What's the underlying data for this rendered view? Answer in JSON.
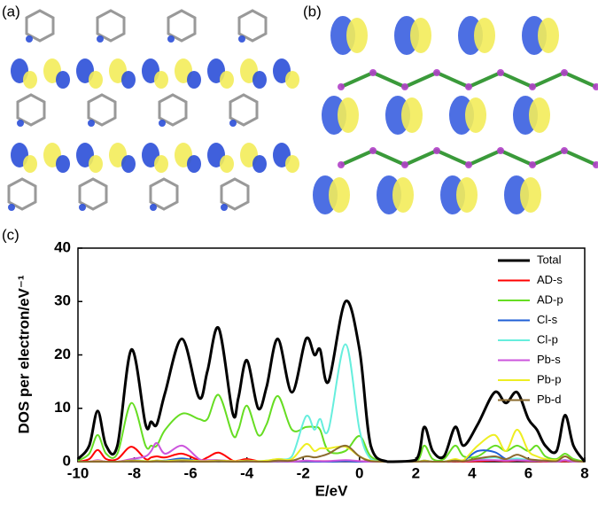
{
  "panels": [
    "(a)",
    "(b)",
    "(c)"
  ],
  "chart_data": {
    "type": "line",
    "xlabel": "E/eV",
    "ylabel": "DOS per electron/eV⁻¹",
    "xlim": [
      -10,
      8
    ],
    "ylim": [
      0,
      40
    ],
    "xticks": [
      -10,
      -8,
      -6,
      -4,
      -2,
      0,
      2,
      4,
      6,
      8
    ],
    "yticks": [
      0,
      10,
      20,
      30,
      40
    ],
    "legend": "upper right",
    "x": [
      -10,
      -9.6,
      -9.3,
      -9.0,
      -8.6,
      -8.1,
      -7.6,
      -7.4,
      -7.2,
      -6.9,
      -6.3,
      -5.7,
      -5.4,
      -5.0,
      -4.5,
      -4.3,
      -4.0,
      -3.6,
      -3.3,
      -2.9,
      -2.4,
      -1.9,
      -1.6,
      -1.4,
      -1.1,
      -0.5,
      0,
      0.4,
      1.0,
      2.0,
      2.3,
      2.6,
      3.0,
      3.4,
      3.7,
      4.2,
      4.8,
      5.2,
      5.6,
      6.0,
      6.3,
      6.6,
      7.0,
      7.3,
      7.6,
      8.0
    ],
    "series": [
      {
        "name": "Total",
        "color": "#000000",
        "values": [
          0.5,
          3,
          9.5,
          3,
          3,
          21,
          7,
          7.5,
          7,
          13,
          23,
          12,
          17,
          25,
          9,
          12,
          19,
          10,
          14,
          23,
          13,
          23,
          20,
          21,
          15,
          30,
          21,
          3,
          0,
          0.3,
          6.5,
          2,
          1,
          6.5,
          3,
          7,
          13,
          11,
          13,
          8,
          6,
          3,
          2,
          8.7,
          3,
          0
        ]
      },
      {
        "name": "AD-s",
        "color": "#ff0000",
        "values": [
          0,
          0.5,
          2.2,
          0.5,
          0.5,
          2.8,
          0.5,
          0.8,
          1,
          0.8,
          1.5,
          0.3,
          0.8,
          1.7,
          0.2,
          0.2,
          0.5,
          0.1,
          0.1,
          0.2,
          0.1,
          0.1,
          0.1,
          0.1,
          0.1,
          0.1,
          0.1,
          0,
          0,
          0,
          0.1,
          0,
          0,
          0.1,
          0,
          0.1,
          0.2,
          0.1,
          0.2,
          0.1,
          0.1,
          0,
          0,
          0.1,
          0,
          0
        ]
      },
      {
        "name": "AD-p",
        "color": "#66dd22",
        "values": [
          0.2,
          1.5,
          5,
          1.5,
          1.5,
          11,
          3,
          3,
          3,
          6,
          9,
          8,
          8,
          12.5,
          5,
          6,
          10.5,
          5,
          7,
          12.3,
          6,
          6.5,
          6.5,
          6,
          2,
          2,
          4.8,
          1,
          0,
          0,
          3,
          0.5,
          0.5,
          3,
          1,
          1,
          3,
          2,
          3,
          2,
          3,
          1,
          0.5,
          1.5,
          0.5,
          0
        ]
      },
      {
        "name": "Cl-s",
        "color": "#1f5fd6",
        "values": [
          0,
          0,
          0.2,
          0,
          0,
          0.3,
          0.1,
          0.1,
          0.2,
          0.2,
          0.6,
          0.1,
          0.1,
          0.2,
          0,
          0,
          0.1,
          0,
          0,
          0.1,
          0,
          0.1,
          0,
          0,
          0,
          0.1,
          0,
          0,
          0,
          0,
          0.2,
          0,
          0,
          0.4,
          0.2,
          2,
          1.8,
          0.5,
          0.3,
          0.2,
          0.2,
          0.1,
          0,
          0.3,
          0,
          0
        ]
      },
      {
        "name": "Cl-p",
        "color": "#66eedd",
        "values": [
          0,
          0,
          0.1,
          0,
          0,
          0.2,
          0.1,
          0.1,
          0.1,
          0.1,
          0.2,
          0.1,
          0.1,
          0.2,
          0.1,
          0.1,
          0.2,
          0.1,
          0.2,
          0.5,
          1,
          8.5,
          6,
          8,
          6,
          22,
          6,
          0.5,
          0,
          0,
          0.2,
          0,
          0,
          0.3,
          0.1,
          0.5,
          0.8,
          0.4,
          0.6,
          0.3,
          0.3,
          0.1,
          0.1,
          0.3,
          0,
          0
        ]
      },
      {
        "name": "Pb-s",
        "color": "#cc55dd",
        "values": [
          0,
          0,
          0.3,
          0,
          0,
          0.5,
          1,
          2,
          3.5,
          1.5,
          3,
          0.5,
          0.3,
          0.3,
          0.1,
          0.1,
          0.1,
          0,
          0,
          0.1,
          0,
          0.2,
          0.1,
          0.1,
          0.1,
          0.3,
          0.1,
          0,
          0,
          0,
          0.1,
          0,
          0,
          0.2,
          0.1,
          0.3,
          0.3,
          0.2,
          0.3,
          0.2,
          0.2,
          0.1,
          0,
          0.3,
          0,
          0
        ]
      },
      {
        "name": "Pb-p",
        "color": "#eeee22",
        "values": [
          0,
          0,
          0.1,
          0,
          0,
          0.2,
          0.1,
          0.1,
          0.2,
          0.1,
          0.3,
          0.1,
          0.1,
          0.2,
          0.1,
          0.1,
          0.2,
          0.1,
          0.2,
          0.5,
          0.5,
          3.3,
          2,
          2.5,
          2.5,
          2.8,
          1,
          0.2,
          0,
          0,
          0.2,
          0,
          0,
          0.5,
          0.3,
          3,
          5,
          2,
          6,
          2,
          1,
          0.5,
          0.3,
          1,
          0.2,
          0
        ]
      },
      {
        "name": "Pb-d",
        "color": "#8b6b2e",
        "values": [
          0,
          0,
          0,
          0,
          0,
          0.1,
          0,
          0,
          0.1,
          0,
          0.1,
          0,
          0,
          0.1,
          0,
          0,
          0.1,
          0,
          0,
          0.2,
          0.2,
          1,
          0.8,
          1,
          1.5,
          3,
          1,
          0.1,
          0,
          0,
          0.1,
          0,
          0,
          0.2,
          0.1,
          0.6,
          1,
          0.5,
          1.3,
          0.5,
          0.3,
          0.2,
          0.1,
          1,
          0.2,
          0
        ]
      }
    ]
  }
}
